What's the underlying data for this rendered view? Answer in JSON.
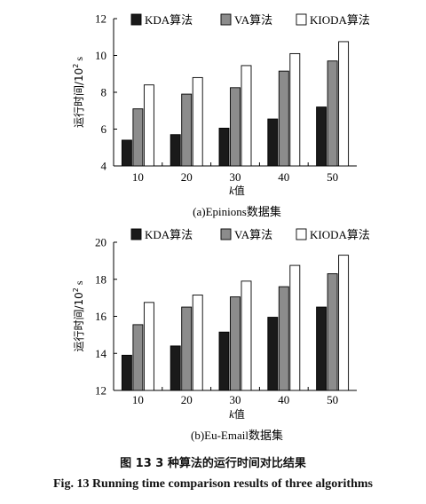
{
  "figure": {
    "caption_cn": "图 13   3 种算法的运行时间对比结果",
    "caption_en": "Fig. 13    Running time comparison results of three algorithms"
  },
  "chart_data": [
    {
      "type": "bar",
      "title": "(a)Epinions数据集",
      "xlabel_italic": "k",
      "xlabel_suffix": "值",
      "ylabel_text": "运行时间/10",
      "ylabel_exp": "2",
      "ylabel_unit": " s",
      "categories": [
        "10",
        "20",
        "30",
        "40",
        "50"
      ],
      "ylim": [
        4,
        12
      ],
      "yticks": [
        4,
        6,
        8,
        10,
        12
      ],
      "legend": "top-left",
      "series": [
        {
          "name": "KDA算法",
          "color": "#1a1a1a",
          "values": [
            5.4,
            5.7,
            6.05,
            6.55,
            7.2
          ]
        },
        {
          "name": "VA算法",
          "color": "#8c8c8c",
          "values": [
            7.1,
            7.9,
            8.25,
            9.15,
            9.7
          ]
        },
        {
          "name": "KIODA算法",
          "color": "#ffffff",
          "values": [
            8.4,
            8.8,
            9.45,
            10.1,
            10.75
          ]
        }
      ]
    },
    {
      "type": "bar",
      "title": "(b)Eu-Email数据集",
      "xlabel_italic": "k",
      "xlabel_suffix": "值",
      "ylabel_text": "运行时间/10",
      "ylabel_exp": "2",
      "ylabel_unit": " s",
      "categories": [
        "10",
        "20",
        "30",
        "40",
        "50"
      ],
      "ylim": [
        12,
        20
      ],
      "yticks": [
        12,
        14,
        16,
        18,
        20
      ],
      "legend": "top",
      "series": [
        {
          "name": "KDA算法",
          "color": "#1a1a1a",
          "values": [
            13.9,
            14.4,
            15.15,
            15.95,
            16.5
          ]
        },
        {
          "name": "VA算法",
          "color": "#8c8c8c",
          "values": [
            15.55,
            16.5,
            17.05,
            17.6,
            18.3
          ]
        },
        {
          "name": "KIODA算法",
          "color": "#ffffff",
          "values": [
            16.75,
            17.15,
            17.9,
            18.75,
            19.3
          ]
        }
      ]
    }
  ]
}
